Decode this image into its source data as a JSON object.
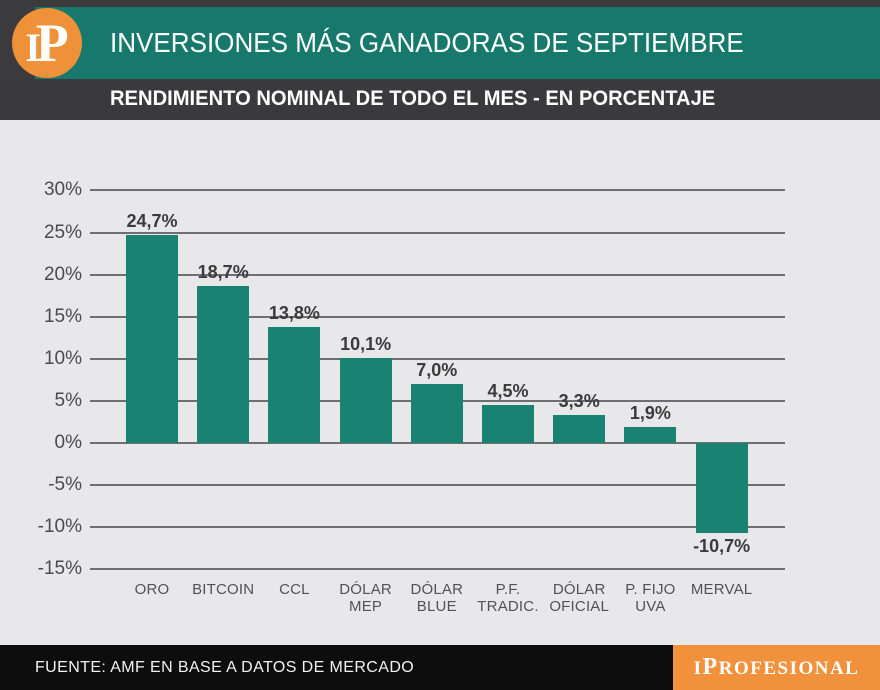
{
  "header": {
    "title": "INVERSIONES MÁS GANADORAS DE SEPTIEMBRE",
    "logo_i": "I",
    "logo_p": "P"
  },
  "subtitle_bar": {
    "text": "RENDIMIENTO NOMINAL DE TODO EL MES - EN PORCENTAJE"
  },
  "chart_data": {
    "type": "bar",
    "title": "INVERSIONES MÁS GANADORAS DE SEPTIEMBRE",
    "subtitle": "RENDIMIENTO NOMINAL DE TODO EL MES - EN PORCENTAJE",
    "categories": [
      [
        "ORO"
      ],
      [
        "BITCOIN"
      ],
      [
        "CCL"
      ],
      [
        "DÓLAR",
        "MEP"
      ],
      [
        "DÓLAR",
        "BLUE"
      ],
      [
        "P.F.",
        "TRADIC."
      ],
      [
        "DÓLAR",
        "OFICIAL"
      ],
      [
        "P. FIJO",
        "UVA"
      ],
      [
        "MERVAL"
      ]
    ],
    "values": [
      24.7,
      18.7,
      13.8,
      10.1,
      7.0,
      4.5,
      3.3,
      1.9,
      -10.7
    ],
    "value_labels": [
      "24,7%",
      "18,7%",
      "13,8%",
      "10,1%",
      "7,0%",
      "4,5%",
      "3,3%",
      "1,9%",
      "-10,7%"
    ],
    "yticks": [
      30,
      25,
      20,
      15,
      10,
      5,
      0,
      -5,
      -10,
      -15
    ],
    "ytick_labels": [
      "30%",
      "25%",
      "20%",
      "15%",
      "10%",
      "5%",
      "0%",
      "-5%",
      "-10%",
      "-15%"
    ],
    "ylim": [
      -15,
      30
    ],
    "grid": true,
    "legend": null,
    "bar_color": "#1a8273",
    "xlabel": "",
    "ylabel": ""
  },
  "footer": {
    "source": "FUENTE: AMF EN BASE A DATOS DE MERCADO",
    "brand_i": "I",
    "brand_p": "P",
    "brand_rest": "ROFESIONAL"
  },
  "colors": {
    "header_teal": "#17796b",
    "bar_teal": "#1a8273",
    "charcoal": "#3b3b3d",
    "panel_gray": "#e8e8ea",
    "brand_orange": "#f1913c",
    "logo_orange": "#ef9138",
    "footer_black": "#0d0d0d"
  }
}
